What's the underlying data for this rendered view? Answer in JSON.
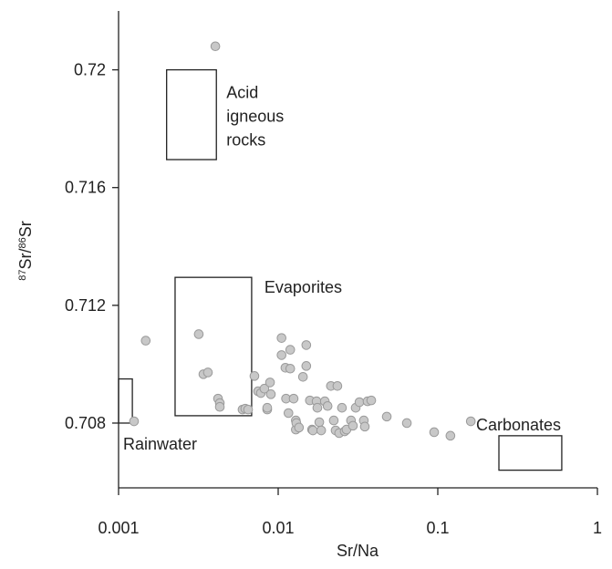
{
  "chart_data": {
    "type": "scatter",
    "xlabel": "Sr/Na",
    "ylabel_parts": [
      {
        "text": "87",
        "sup": true
      },
      {
        "text": "Sr/",
        "sup": false
      },
      {
        "text": "86",
        "sup": true
      },
      {
        "text": "Sr",
        "sup": false
      }
    ],
    "xscale": "log",
    "xlim": [
      0.001,
      1
    ],
    "xticks": [
      0.001,
      0.01,
      0.1,
      1
    ],
    "ylim": [
      0.7058,
      0.722
    ],
    "yticks": [
      0.708,
      0.712,
      0.716,
      0.72
    ],
    "color": "#c8c8c8",
    "regions": [
      {
        "label": [
          "Acid",
          "igneous",
          "rocks"
        ],
        "xlim": [
          0.002,
          0.0041
        ],
        "ylim": [
          0.71695,
          0.72
        ]
      },
      {
        "label": [
          "Evaporites"
        ],
        "xlim": [
          0.00226,
          0.00682
        ],
        "ylim": [
          0.70825,
          0.71295
        ]
      },
      {
        "label": [
          "Rainwater"
        ],
        "xlim": [
          0.001,
          0.00122
        ],
        "ylim": [
          0.708,
          0.7095
        ]
      },
      {
        "label": [
          "Carbonates"
        ],
        "xlim": [
          0.2415,
          0.598
        ],
        "ylim": [
          0.7064,
          0.70757
        ]
      }
    ],
    "x": [
      0.00404,
      0.00148,
      0.00318,
      0.00125,
      0.0034,
      0.00363,
      0.0042,
      0.00431,
      0.00431,
      0.00598,
      0.00622,
      0.00648,
      0.0071,
      0.00748,
      0.00779,
      0.0082,
      0.00854,
      0.00854,
      0.00889,
      0.009,
      0.0105,
      0.0105,
      0.0111,
      0.0119,
      0.0119,
      0.0112,
      0.0116,
      0.0125,
      0.0129,
      0.0129,
      0.013,
      0.0135,
      0.0143,
      0.015,
      0.015,
      0.0163,
      0.0158,
      0.0165,
      0.0174,
      0.0176,
      0.0181,
      0.0186,
      0.0196,
      0.0204,
      0.0214,
      0.0223,
      0.0229,
      0.0235,
      0.0241,
      0.0251,
      0.0261,
      0.0268,
      0.0286,
      0.0294,
      0.0306,
      0.0323,
      0.0344,
      0.0349,
      0.0363,
      0.0383,
      0.0479,
      0.064,
      0.0949,
      0.12,
      0.161
    ],
    "values": [
      0.7208,
      0.7108,
      0.71102,
      0.70806,
      0.70966,
      0.70972,
      0.70883,
      0.70868,
      0.70855,
      0.70846,
      0.70849,
      0.70846,
      0.7096,
      0.70908,
      0.70902,
      0.70917,
      0.70846,
      0.70852,
      0.70938,
      0.70898,
      0.71089,
      0.71031,
      0.70988,
      0.71049,
      0.70985,
      0.70883,
      0.70834,
      0.70883,
      0.70809,
      0.70778,
      0.708,
      0.70785,
      0.70957,
      0.71065,
      0.70994,
      0.70778,
      0.70877,
      0.70775,
      0.70874,
      0.70852,
      0.70803,
      0.70775,
      0.70874,
      0.70858,
      0.70926,
      0.70809,
      0.70775,
      0.70926,
      0.70766,
      0.70852,
      0.70772,
      0.70778,
      0.70809,
      0.70791,
      0.70852,
      0.70871,
      0.70809,
      0.70788,
      0.70874,
      0.70877,
      0.70822,
      0.708,
      0.70769,
      0.70757,
      0.70806
    ]
  }
}
